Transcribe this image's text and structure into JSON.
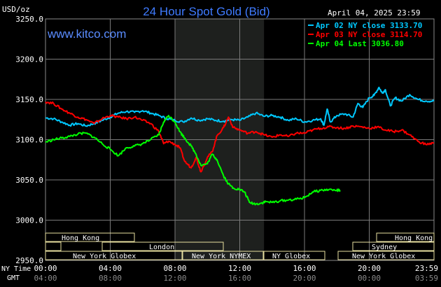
{
  "header": {
    "unit": "USD/oz",
    "title": "24 Hour Spot Gold (Bid)",
    "datetime": "April 04, 2025 23:59",
    "site": "www.kitco.com"
  },
  "colors": {
    "background": "#000000",
    "grid": "#808080",
    "apr02": "#00c8ff",
    "apr03": "#ff0000",
    "apr04": "#00ff00",
    "title": "#3f7bff",
    "highlight": "#202020",
    "session_box": "#e8e0a0"
  },
  "axis_labels": {
    "ny_time": "NY Time",
    "gmt": "GMT"
  },
  "sessions": {
    "hong_kong_1": "Hong Kong",
    "london": "London",
    "new_york_globex_1": "New York Globex",
    "new_york_nymex": "New York NYMEX",
    "ny_globex": "NY Globex",
    "hong_kong_2": "Hong Kong",
    "sydney": "Sydney",
    "new_york_globex_2": "New York Globex"
  },
  "chart_data": {
    "type": "line",
    "title": "24 Hour Spot Gold (Bid)",
    "ylabel": "USD/oz",
    "ylim": [
      2950,
      3250
    ],
    "xlim": [
      0,
      24
    ],
    "grid": true,
    "legend_position": "top-right",
    "highlight_range": [
      8.0,
      13.5
    ],
    "y_ticks": [
      "3250.0",
      "3200.0",
      "3150.0",
      "3100.0",
      "3050.0",
      "3000.0",
      "2950.0"
    ],
    "y_tick_values": [
      3250,
      3200,
      3150,
      3100,
      3050,
      3000,
      2950
    ],
    "x_ticks_ny": [
      "00:00",
      "04:00",
      "08:00",
      "12:00",
      "16:00",
      "20:00",
      "23:59"
    ],
    "x_ticks_gmt": [
      "04:00",
      "08:00",
      "12:00",
      "16:00",
      "20:00",
      "00:00",
      "03:59"
    ],
    "x_tick_values": [
      0,
      4,
      8,
      12,
      16,
      20,
      24
    ],
    "series": [
      {
        "name": "Apr 02 NY close 3133.70",
        "color": "#00c8ff",
        "points": [
          [
            0,
            3127
          ],
          [
            0.5,
            3126
          ],
          [
            1,
            3122
          ],
          [
            1.5,
            3118
          ],
          [
            2,
            3120
          ],
          [
            2.5,
            3117
          ],
          [
            3,
            3120
          ],
          [
            3.5,
            3124
          ],
          [
            4,
            3128
          ],
          [
            4.5,
            3133
          ],
          [
            5,
            3135
          ],
          [
            5.5,
            3134
          ],
          [
            6,
            3136
          ],
          [
            6.5,
            3133
          ],
          [
            7,
            3130
          ],
          [
            7.5,
            3126
          ],
          [
            8,
            3124
          ],
          [
            8.5,
            3122
          ],
          [
            9,
            3127
          ],
          [
            9.5,
            3124
          ],
          [
            10,
            3126
          ],
          [
            10.5,
            3124
          ],
          [
            11,
            3123
          ],
          [
            11.5,
            3125
          ],
          [
            12,
            3124
          ],
          [
            12.5,
            3128
          ],
          [
            13,
            3133
          ],
          [
            13.5,
            3129
          ],
          [
            14,
            3130
          ],
          [
            14.5,
            3128
          ],
          [
            15,
            3124
          ],
          [
            15.5,
            3126
          ],
          [
            16,
            3122
          ],
          [
            16.5,
            3124
          ],
          [
            17,
            3126
          ],
          [
            17.2,
            3118
          ],
          [
            17.4,
            3138
          ],
          [
            17.6,
            3122
          ],
          [
            18,
            3130
          ],
          [
            18.5,
            3132
          ],
          [
            19,
            3128
          ],
          [
            19.3,
            3145
          ],
          [
            19.6,
            3140
          ],
          [
            20,
            3152
          ],
          [
            20.3,
            3155
          ],
          [
            20.6,
            3165
          ],
          [
            20.8,
            3158
          ],
          [
            21,
            3162
          ],
          [
            21.3,
            3142
          ],
          [
            21.6,
            3152
          ],
          [
            22,
            3148
          ],
          [
            22.5,
            3156
          ],
          [
            23,
            3150
          ],
          [
            23.5,
            3148
          ],
          [
            24,
            3148
          ]
        ]
      },
      {
        "name": "Apr 03 NY close 3114.70",
        "color": "#ff0000",
        "points": [
          [
            0,
            3147
          ],
          [
            0.5,
            3145
          ],
          [
            1,
            3138
          ],
          [
            1.5,
            3133
          ],
          [
            2,
            3128
          ],
          [
            2.5,
            3125
          ],
          [
            3,
            3120
          ],
          [
            3.5,
            3126
          ],
          [
            4,
            3130
          ],
          [
            4.5,
            3128
          ],
          [
            5,
            3126
          ],
          [
            5.5,
            3128
          ],
          [
            6,
            3124
          ],
          [
            6.5,
            3120
          ],
          [
            7,
            3110
          ],
          [
            7.3,
            3095
          ],
          [
            7.6,
            3098
          ],
          [
            8,
            3094
          ],
          [
            8.3,
            3090
          ],
          [
            8.6,
            3073
          ],
          [
            9,
            3065
          ],
          [
            9.3,
            3078
          ],
          [
            9.6,
            3060
          ],
          [
            10,
            3078
          ],
          [
            10.3,
            3085
          ],
          [
            10.6,
            3105
          ],
          [
            11,
            3115
          ],
          [
            11.3,
            3128
          ],
          [
            11.6,
            3115
          ],
          [
            12,
            3112
          ],
          [
            12.5,
            3108
          ],
          [
            13,
            3110
          ],
          [
            13.5,
            3106
          ],
          [
            14,
            3103
          ],
          [
            14.5,
            3106
          ],
          [
            15,
            3104
          ],
          [
            15.5,
            3108
          ],
          [
            16,
            3108
          ],
          [
            16.5,
            3112
          ],
          [
            17,
            3114
          ],
          [
            17.5,
            3116
          ],
          [
            18,
            3115
          ],
          [
            18.5,
            3114
          ],
          [
            19,
            3117
          ],
          [
            19.5,
            3116
          ],
          [
            20,
            3114
          ],
          [
            20.5,
            3116
          ],
          [
            21,
            3112
          ],
          [
            21.5,
            3110
          ],
          [
            22,
            3112
          ],
          [
            22.5,
            3106
          ],
          [
            23,
            3098
          ],
          [
            23.5,
            3094
          ],
          [
            24,
            3096
          ]
        ]
      },
      {
        "name": "Apr 04 Last 3036.80",
        "color": "#00ff00",
        "points": [
          [
            0,
            3097
          ],
          [
            0.5,
            3100
          ],
          [
            1,
            3102
          ],
          [
            1.5,
            3104
          ],
          [
            2,
            3107
          ],
          [
            2.5,
            3108
          ],
          [
            3,
            3103
          ],
          [
            3.5,
            3095
          ],
          [
            4,
            3088
          ],
          [
            4.5,
            3080
          ],
          [
            5,
            3090
          ],
          [
            5.5,
            3092
          ],
          [
            6,
            3095
          ],
          [
            6.5,
            3100
          ],
          [
            7,
            3106
          ],
          [
            7.3,
            3122
          ],
          [
            7.6,
            3130
          ],
          [
            8,
            3122
          ],
          [
            8.3,
            3110
          ],
          [
            8.6,
            3102
          ],
          [
            9,
            3092
          ],
          [
            9.3,
            3082
          ],
          [
            9.6,
            3068
          ],
          [
            10,
            3070
          ],
          [
            10.3,
            3082
          ],
          [
            10.6,
            3075
          ],
          [
            11,
            3055
          ],
          [
            11.3,
            3045
          ],
          [
            11.6,
            3040
          ],
          [
            12,
            3038
          ],
          [
            12.3,
            3035
          ],
          [
            12.6,
            3022
          ],
          [
            13,
            3020
          ],
          [
            13.3,
            3021
          ],
          [
            13.6,
            3023
          ],
          [
            14,
            3022
          ],
          [
            14.5,
            3024
          ],
          [
            15,
            3025
          ],
          [
            15.5,
            3026
          ],
          [
            16,
            3028
          ],
          [
            16.5,
            3035
          ],
          [
            17,
            3037
          ],
          [
            17.5,
            3038
          ],
          [
            18,
            3037
          ],
          [
            18.2,
            3037
          ]
        ]
      }
    ]
  }
}
